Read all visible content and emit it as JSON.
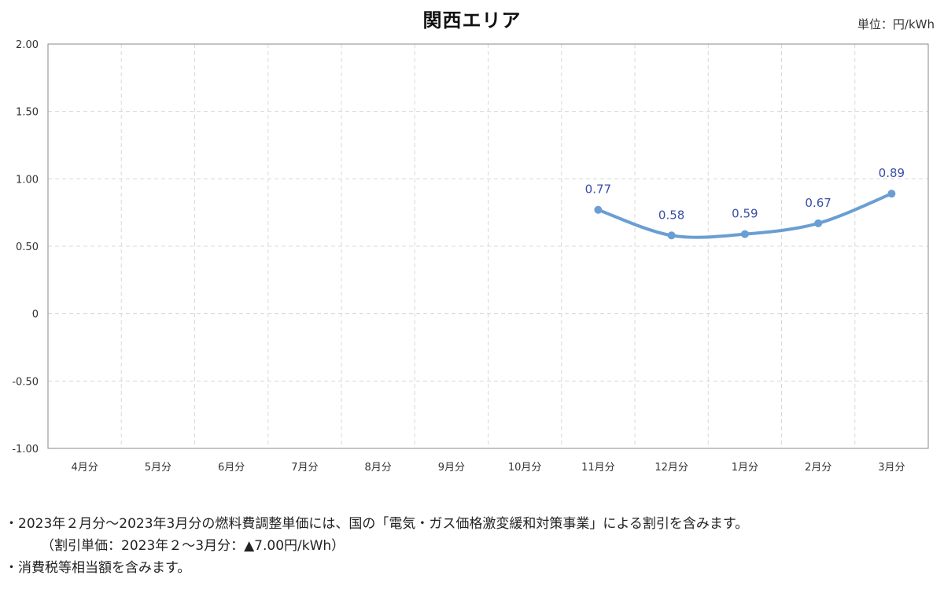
{
  "header": {
    "title": "関西エリア",
    "unit": "単位：円/kWh"
  },
  "chart_data": {
    "type": "line",
    "title": "関西エリア",
    "unit": "単位：円/kWh",
    "categories": [
      "4月分",
      "5月分",
      "6月分",
      "7月分",
      "8月分",
      "9月分",
      "10月分",
      "11月分",
      "12月分",
      "1月分",
      "2月分",
      "3月分"
    ],
    "series": [
      {
        "values": [
          null,
          null,
          null,
          null,
          null,
          null,
          null,
          0.77,
          0.58,
          0.59,
          0.67,
          0.89
        ],
        "labels": [
          "",
          "",
          "",
          "",
          "",
          "",
          "",
          "0.77",
          "0.58",
          "0.59",
          "0.67",
          "0.89"
        ],
        "color": "#6a9ed3"
      }
    ],
    "ylim": [
      -1.0,
      2.0
    ],
    "yticks": [
      -1.0,
      -0.5,
      0,
      0.5,
      1.0,
      1.5,
      2.0
    ],
    "ytick_labels": [
      "-1.00",
      "-0.50",
      "0",
      "0.50",
      "1.00",
      "1.50",
      "2.00"
    ],
    "grid": true,
    "label_color": "#3a4ea8",
    "grid_color": "#d8d8d8"
  },
  "notes": [
    "・2023年２月分～2023年3月分の燃料費調整単価には、国の「電気・ガス価格激変緩和対策事業」による割引を含みます。",
    "（割引単価：2023年２～3月分：▲7.00円/kWh）",
    "・消費税等相当額を含みます。"
  ]
}
